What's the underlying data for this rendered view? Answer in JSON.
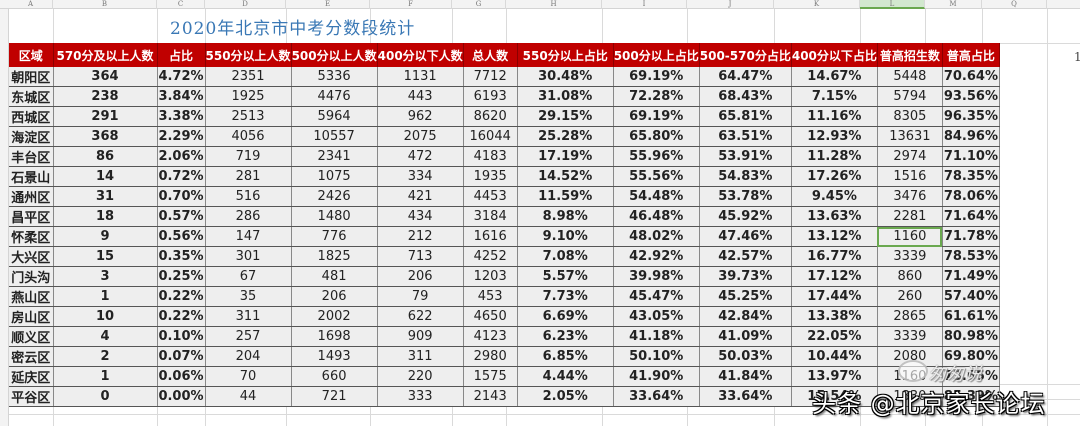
{
  "spreadsheet": {
    "column_letters": [
      "A",
      "B",
      "C",
      "D",
      "E",
      "F",
      "G",
      "H",
      "I",
      "J",
      "K",
      "L",
      "M",
      "Q"
    ],
    "selected_column": "L",
    "title": "2020年北京市中考分数段统计",
    "headers": [
      "区域",
      "570分及以上人数",
      "占比",
      "550分以上人数",
      "500分以上人数",
      "400分以下人数",
      "总人数",
      "550分以上占比",
      "500分以上占比",
      "500-570分占比",
      "400分以下占比",
      "普高招生数",
      "普高占比"
    ],
    "q_column_value": "1",
    "rows": [
      {
        "region": "朝阳区",
        "n570": "364",
        "p570": "4.72%",
        "n550": "2351",
        "n500": "5336",
        "n400": "1131",
        "total": "7712",
        "p550": "30.48%",
        "p500": "69.19%",
        "p500_570": "64.47%",
        "p400": "14.67%",
        "admit": "5448",
        "padmit": "70.64%",
        "p500_color": "red",
        "p400_color": "",
        "padmit_color": ""
      },
      {
        "region": "东城区",
        "n570": "238",
        "p570": "3.84%",
        "n550": "1925",
        "n500": "4476",
        "n400": "443",
        "total": "6193",
        "p550": "31.08%",
        "p500": "72.28%",
        "p500_570": "68.43%",
        "p400": "7.15%",
        "admit": "5794",
        "padmit": "93.56%",
        "p500_color": "red",
        "p400_color": "",
        "padmit_color": "red"
      },
      {
        "region": "西城区",
        "n570": "291",
        "p570": "3.38%",
        "n550": "2513",
        "n500": "5964",
        "n400": "962",
        "total": "8620",
        "p550": "29.15%",
        "p500": "69.19%",
        "p500_570": "65.81%",
        "p400": "11.16%",
        "admit": "8305",
        "padmit": "96.35%",
        "p500_color": "red",
        "p400_color": "",
        "padmit_color": "red"
      },
      {
        "region": "海淀区",
        "n570": "368",
        "p570": "2.29%",
        "n550": "4056",
        "n500": "10557",
        "n400": "2075",
        "total": "16044",
        "p550": "25.28%",
        "p500": "65.80%",
        "p500_570": "63.51%",
        "p400": "12.93%",
        "admit": "13631",
        "padmit": "84.96%",
        "p500_color": "",
        "p400_color": "",
        "padmit_color": "red"
      },
      {
        "region": "丰台区",
        "n570": "86",
        "p570": "2.06%",
        "n550": "719",
        "n500": "2341",
        "n400": "472",
        "total": "4183",
        "p550": "17.19%",
        "p500": "55.96%",
        "p500_570": "53.91%",
        "p400": "11.28%",
        "admit": "2974",
        "padmit": "71.10%",
        "p500_color": "",
        "p400_color": "",
        "padmit_color": ""
      },
      {
        "region": "石景山",
        "n570": "14",
        "p570": "0.72%",
        "n550": "281",
        "n500": "1075",
        "n400": "334",
        "total": "1935",
        "p550": "14.52%",
        "p500": "55.56%",
        "p500_570": "54.83%",
        "p400": "17.26%",
        "admit": "1516",
        "padmit": "78.35%",
        "p500_color": "",
        "p400_color": "red",
        "padmit_color": ""
      },
      {
        "region": "通州区",
        "n570": "31",
        "p570": "0.70%",
        "n550": "516",
        "n500": "2426",
        "n400": "421",
        "total": "4453",
        "p550": "11.59%",
        "p500": "54.48%",
        "p500_570": "53.78%",
        "p400": "9.45%",
        "admit": "3476",
        "padmit": "78.06%",
        "p500_color": "",
        "p400_color": "",
        "padmit_color": ""
      },
      {
        "region": "昌平区",
        "n570": "18",
        "p570": "0.57%",
        "n550": "286",
        "n500": "1480",
        "n400": "434",
        "total": "3184",
        "p550": "8.98%",
        "p500": "46.48%",
        "p500_570": "45.92%",
        "p400": "13.63%",
        "admit": "2281",
        "padmit": "71.64%",
        "p500_color": "",
        "p400_color": "",
        "padmit_color": ""
      },
      {
        "region": "怀柔区",
        "n570": "9",
        "p570": "0.56%",
        "n550": "147",
        "n500": "776",
        "n400": "212",
        "total": "1616",
        "p550": "9.10%",
        "p500": "48.02%",
        "p500_570": "47.46%",
        "p400": "13.12%",
        "admit": "1160",
        "padmit": "71.78%",
        "p500_color": "",
        "p400_color": "",
        "padmit_color": ""
      },
      {
        "region": "大兴区",
        "n570": "15",
        "p570": "0.35%",
        "n550": "301",
        "n500": "1825",
        "n400": "713",
        "total": "4252",
        "p550": "7.08%",
        "p500": "42.92%",
        "p500_570": "42.57%",
        "p400": "16.77%",
        "admit": "3339",
        "padmit": "78.53%",
        "p500_color": "",
        "p400_color": "",
        "padmit_color": ""
      },
      {
        "region": "门头沟",
        "n570": "3",
        "p570": "0.25%",
        "n550": "67",
        "n500": "481",
        "n400": "206",
        "total": "1203",
        "p550": "5.57%",
        "p500": "39.98%",
        "p500_570": "39.73%",
        "p400": "17.12%",
        "admit": "860",
        "padmit": "71.49%",
        "p500_color": "",
        "p400_color": "",
        "padmit_color": ""
      },
      {
        "region": "燕山区",
        "n570": "1",
        "p570": "0.22%",
        "n550": "35",
        "n500": "206",
        "n400": "79",
        "total": "453",
        "p550": "7.73%",
        "p500": "45.47%",
        "p500_570": "45.25%",
        "p400": "17.44%",
        "admit": "260",
        "padmit": "57.40%",
        "p500_color": "",
        "p400_color": "red",
        "padmit_color": "blue"
      },
      {
        "region": "房山区",
        "n570": "10",
        "p570": "0.22%",
        "n550": "311",
        "n500": "2002",
        "n400": "622",
        "total": "4650",
        "p550": "6.69%",
        "p500": "43.05%",
        "p500_570": "42.84%",
        "p400": "13.38%",
        "admit": "2865",
        "padmit": "61.61%",
        "p500_color": "",
        "p400_color": "",
        "padmit_color": "blue"
      },
      {
        "region": "顺义区",
        "n570": "4",
        "p570": "0.10%",
        "n550": "257",
        "n500": "1698",
        "n400": "909",
        "total": "4123",
        "p550": "6.23%",
        "p500": "41.18%",
        "p500_570": "41.09%",
        "p400": "22.05%",
        "admit": "3339",
        "padmit": "80.98%",
        "p500_color": "",
        "p400_color": "red",
        "padmit_color": ""
      },
      {
        "region": "密云区",
        "n570": "2",
        "p570": "0.07%",
        "n550": "204",
        "n500": "1493",
        "n400": "311",
        "total": "2980",
        "p550": "6.85%",
        "p500": "50.10%",
        "p500_570": "50.03%",
        "p400": "10.44%",
        "admit": "2080",
        "padmit": "69.80%",
        "p500_color": "",
        "p400_color": "",
        "padmit_color": "blue"
      },
      {
        "region": "延庆区",
        "n570": "1",
        "p570": "0.06%",
        "n550": "70",
        "n500": "660",
        "n400": "220",
        "total": "1575",
        "p550": "4.44%",
        "p500": "41.90%",
        "p500_570": "41.84%",
        "p400": "13.97%",
        "admit": "1160",
        "padmit": "73.65%",
        "p500_color": "",
        "p400_color": "",
        "padmit_color": ""
      },
      {
        "region": "平谷区",
        "n570": "0",
        "p570": "0.00%",
        "n550": "44",
        "n500": "721",
        "n400": "333",
        "total": "2143",
        "p550": "2.05%",
        "p500": "33.64%",
        "p500_570": "33.64%",
        "p400": "15.54%",
        "admit": "1830",
        "padmit": "85.39%",
        "p500_color": "",
        "p400_color": "",
        "padmit_color": "red"
      }
    ],
    "selected_cell": {
      "row": 8,
      "col": "admit"
    }
  },
  "watermark": {
    "text": "头条 @北京家长论坛",
    "wechat_label": "匆匆说"
  },
  "colors": {
    "header_bg": "#c00000",
    "title": "#3a78b5",
    "highlight_red": "#e02020",
    "highlight_blue": "#2e86c1",
    "green_fill": "#c8f7c8",
    "gold_fill": "#fdd870"
  }
}
